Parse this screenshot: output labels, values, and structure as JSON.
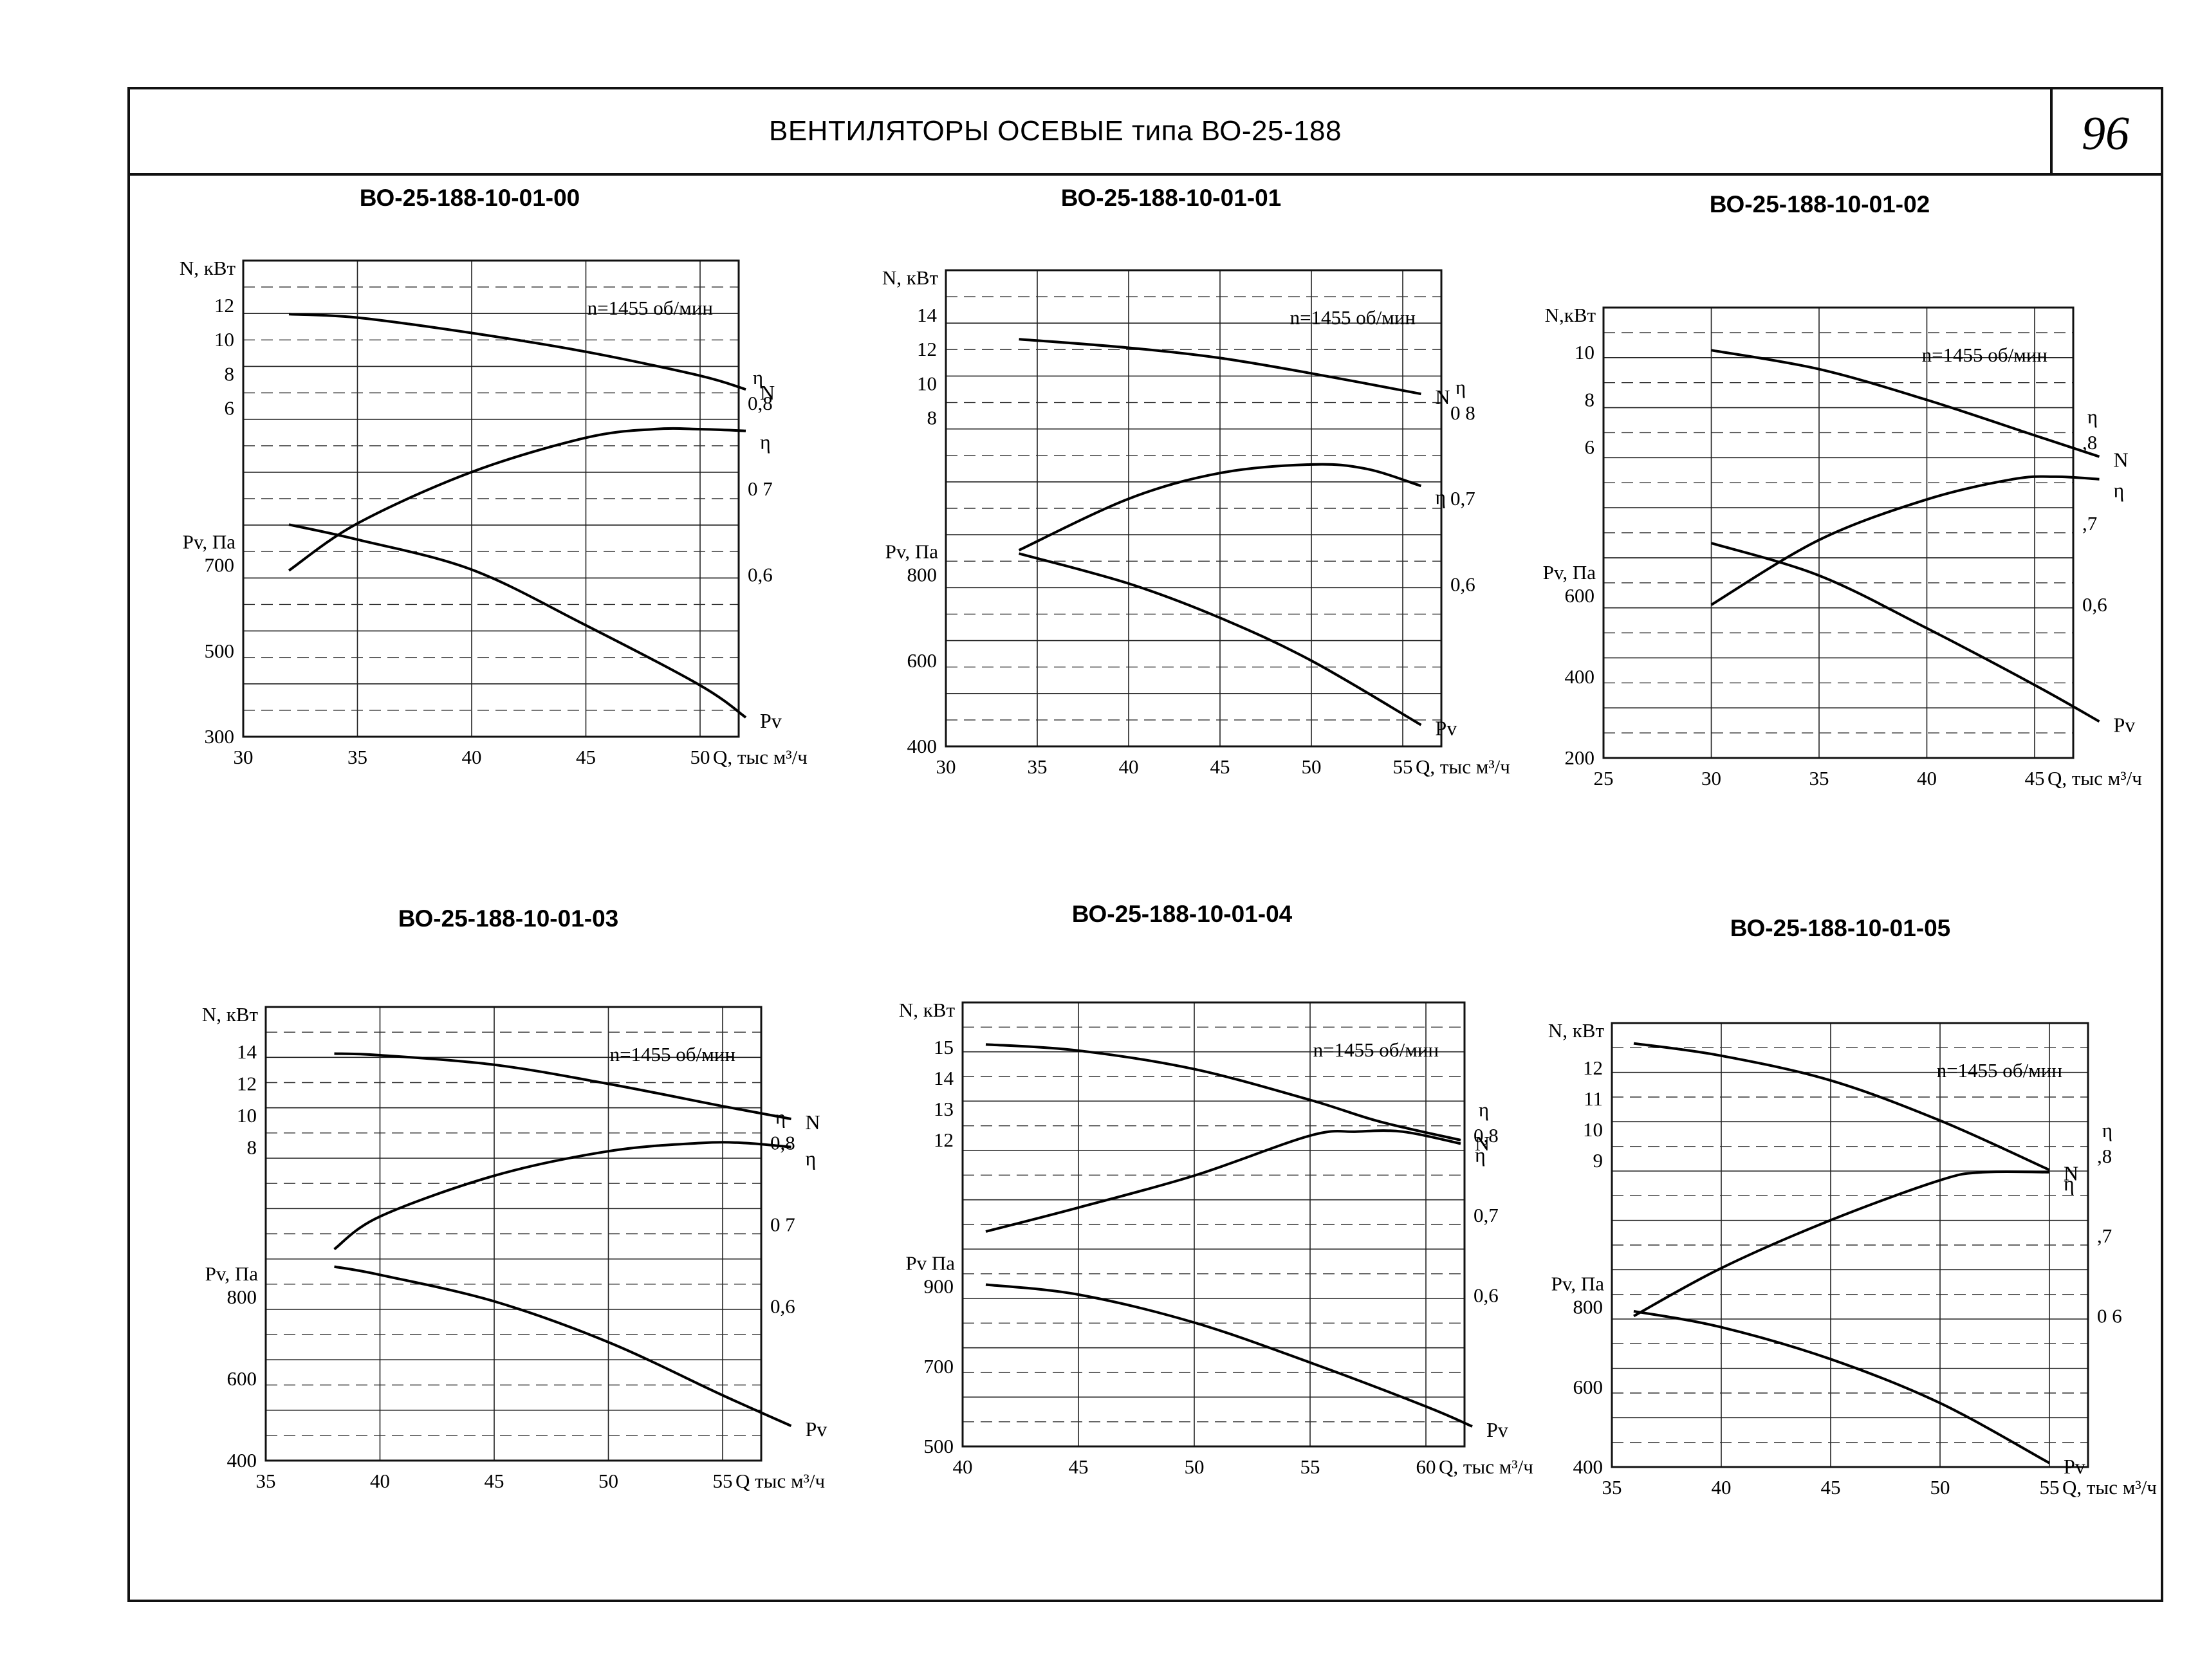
{
  "header": {
    "title": "ВЕНТИЛЯТОРЫ ОСЕВЫЕ типа ВО-25-188",
    "page_number": "96"
  },
  "chart_data": [
    {
      "title": "ВО-25-188-10-01-00",
      "type": "line",
      "speed_label": "n=1455 об/мин",
      "xlabel": "Q, тыс м³/ч",
      "n_label": "N, кВт",
      "pv_label": "Pv, Па",
      "eta_label": "η",
      "x_ticks": [
        "30",
        "35",
        "40",
        "45",
        "50"
      ],
      "xlim": [
        30,
        55
      ],
      "n_ticks": [
        "12",
        "10",
        "8",
        "6"
      ],
      "pv_ticks": [
        "700",
        "500",
        "300"
      ],
      "eta_ticks": [
        "0,8",
        "0 7",
        "0,6"
      ],
      "n_range": [
        6,
        12
      ],
      "pv_range": [
        300,
        700
      ],
      "eta_range": [
        0.6,
        0.8
      ],
      "series": [
        {
          "name": "N",
          "x": [
            32,
            35,
            40,
            45,
            50,
            52
          ],
          "values": [
            11.5,
            11.3,
            10.4,
            9.3,
            7.9,
            7.1
          ]
        },
        {
          "name": "η",
          "x": [
            32,
            35,
            40,
            45,
            48,
            50,
            52
          ],
          "values": [
            0.605,
            0.66,
            0.72,
            0.76,
            0.77,
            0.77,
            0.768
          ]
        },
        {
          "name": "Pv",
          "x": [
            32,
            35,
            40,
            45,
            50,
            52
          ],
          "values": [
            795,
            760,
            690,
            560,
            420,
            345
          ]
        }
      ]
    },
    {
      "title": "ВО-25-188-10-01-01",
      "type": "line",
      "speed_label": "n=1455 об/мин",
      "xlabel": "Q, тыс м³/ч",
      "n_label": "N, кВт",
      "pv_label": "Pv, Па",
      "eta_label": "η",
      "x_ticks": [
        "30",
        "35",
        "40",
        "45",
        "50",
        "55"
      ],
      "xlim": [
        30,
        56
      ],
      "n_ticks": [
        "14",
        "12",
        "10",
        "8"
      ],
      "pv_ticks": [
        "800",
        "600",
        "400"
      ],
      "eta_ticks": [
        "0 8",
        "0,7",
        "0,6"
      ],
      "n_range": [
        8,
        14
      ],
      "pv_range": [
        400,
        800
      ],
      "eta_range": [
        0.6,
        0.8
      ],
      "series": [
        {
          "name": "N",
          "x": [
            34,
            40,
            45,
            50,
            56
          ],
          "values": [
            12.6,
            12.1,
            11.5,
            10.6,
            9.4
          ]
        },
        {
          "name": "η",
          "x": [
            34,
            40,
            45,
            50,
            53,
            56
          ],
          "values": [
            0.64,
            0.7,
            0.73,
            0.74,
            0.735,
            0.715
          ]
        },
        {
          "name": "Pv",
          "x": [
            34,
            40,
            45,
            50,
            56
          ],
          "values": [
            850,
            780,
            700,
            600,
            450
          ]
        }
      ]
    },
    {
      "title": "ВО-25-188-10-01-02",
      "type": "line",
      "speed_label": "n=1455 об/мин",
      "xlabel": "Q, тыс м³/ч",
      "n_label": "N,кВт",
      "pv_label": "Pv, Па",
      "eta_label": "η",
      "x_ticks": [
        "25",
        "30",
        "35",
        "40",
        "45"
      ],
      "xlim": [
        25,
        48
      ],
      "n_ticks": [
        "10",
        "8",
        "6"
      ],
      "pv_ticks": [
        "600",
        "400",
        "200"
      ],
      "eta_ticks": [
        ",8",
        ",7",
        "0,6"
      ],
      "n_range": [
        6,
        10
      ],
      "pv_range": [
        200,
        600
      ],
      "eta_range": [
        0.6,
        0.8
      ],
      "series": [
        {
          "name": "N",
          "x": [
            30,
            35,
            40,
            45,
            48
          ],
          "values": [
            10.1,
            9.3,
            8.0,
            6.5,
            5.6
          ]
        },
        {
          "name": "η",
          "x": [
            30,
            35,
            40,
            44,
            46,
            48
          ],
          "values": [
            0.6,
            0.68,
            0.73,
            0.755,
            0.758,
            0.755
          ]
        },
        {
          "name": "Pv",
          "x": [
            30,
            35,
            40,
            45,
            48
          ],
          "values": [
            730,
            650,
            520,
            380,
            290
          ]
        }
      ]
    },
    {
      "title": "ВО-25-188-10-01-03",
      "type": "line",
      "speed_label": "n=1455 об/мин",
      "xlabel": "Q тыс м³/ч",
      "n_label": "N, кВт",
      "pv_label": "Pv, Па",
      "eta_label": "η",
      "x_ticks": [
        "35",
        "40",
        "45",
        "50",
        "55"
      ],
      "xlim": [
        35,
        58
      ],
      "n_ticks": [
        "14",
        "12",
        "10",
        "8"
      ],
      "pv_ticks": [
        "800",
        "600",
        "400"
      ],
      "eta_ticks": [
        "0,8",
        "0 7",
        "0,6"
      ],
      "n_range": [
        8,
        14
      ],
      "pv_range": [
        400,
        800
      ],
      "eta_range": [
        0.6,
        0.8
      ],
      "series": [
        {
          "name": "N",
          "x": [
            38,
            40,
            45,
            50,
            55,
            58
          ],
          "values": [
            13.9,
            13.8,
            13.2,
            12.0,
            10.6,
            9.8
          ]
        },
        {
          "name": "η",
          "x": [
            38,
            40,
            45,
            50,
            54,
            56,
            58
          ],
          "values": [
            0.67,
            0.71,
            0.76,
            0.79,
            0.8,
            0.8,
            0.795
          ]
        },
        {
          "name": "Pv",
          "x": [
            38,
            40,
            45,
            50,
            55,
            58
          ],
          "values": [
            875,
            855,
            790,
            690,
            560,
            485
          ]
        }
      ]
    },
    {
      "title": "ВО-25-188-10-01-04",
      "type": "line",
      "speed_label": "n=1455 об/мин",
      "xlabel": "Q, тыс м³/ч",
      "n_label": "N, кВт",
      "pv_label": "Pv Па",
      "eta_label": "η",
      "x_ticks": [
        "40",
        "45",
        "50",
        "55",
        "60"
      ],
      "xlim": [
        40,
        62
      ],
      "n_ticks": [
        "15",
        "14",
        "13",
        "12"
      ],
      "pv_ticks": [
        "900",
        "700",
        "500"
      ],
      "eta_ticks": [
        "0,8",
        "0,7",
        "0,6"
      ],
      "n_range": [
        12,
        15
      ],
      "pv_range": [
        500,
        900
      ],
      "eta_range": [
        0.6,
        0.8
      ],
      "series": [
        {
          "name": "N",
          "x": [
            41,
            45,
            50,
            55,
            58,
            61.5
          ],
          "values": [
            15.1,
            14.9,
            14.3,
            13.3,
            12.6,
            12.0
          ]
        },
        {
          "name": "η",
          "x": [
            41,
            45,
            50,
            55,
            57,
            59,
            61.5
          ],
          "values": [
            0.68,
            0.71,
            0.75,
            0.8,
            0.805,
            0.805,
            0.79
          ]
        },
        {
          "name": "Pv",
          "x": [
            41,
            45,
            50,
            55,
            60,
            62
          ],
          "values": [
            905,
            880,
            810,
            710,
            600,
            550
          ]
        }
      ]
    },
    {
      "title": "ВО-25-188-10-01-05",
      "type": "line",
      "speed_label": "n=1455 об/мин",
      "xlabel": "Q, тыс м³/ч",
      "n_label": "N, кВт",
      "pv_label": "Pv, Па",
      "eta_label": "η",
      "x_ticks": [
        "35",
        "40",
        "45",
        "50",
        "55"
      ],
      "xlim": [
        35,
        58
      ],
      "n_ticks": [
        "12",
        "11",
        "10",
        "9"
      ],
      "pv_ticks": [
        "800",
        "600",
        "400"
      ],
      "eta_ticks": [
        ",8",
        ",7",
        "0 6"
      ],
      "n_range": [
        9,
        12
      ],
      "pv_range": [
        400,
        800
      ],
      "eta_range": [
        0.6,
        0.8
      ],
      "series": [
        {
          "name": "N",
          "x": [
            36,
            40,
            45,
            50,
            55
          ],
          "values": [
            12.8,
            12.4,
            11.6,
            10.3,
            8.7
          ]
        },
        {
          "name": "η",
          "x": [
            36,
            40,
            45,
            50,
            52,
            55
          ],
          "values": [
            0.6,
            0.66,
            0.72,
            0.77,
            0.78,
            0.78
          ]
        },
        {
          "name": "Pv",
          "x": [
            36,
            40,
            45,
            50,
            55
          ],
          "values": [
            790,
            750,
            670,
            560,
            410
          ]
        }
      ]
    }
  ]
}
